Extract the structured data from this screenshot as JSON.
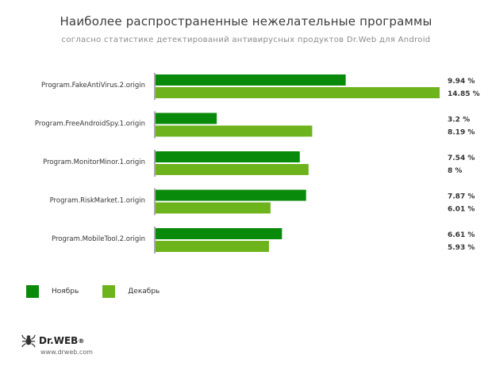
{
  "chart_data": {
    "type": "bar",
    "orientation": "horizontal",
    "title": "Наиболее распространенные нежелательные программы",
    "subtitle": "согласно статистике детектирований антивирусных продуктов Dr.Web для Android",
    "categories": [
      "Program.FakeAntiVirus.2.origin",
      "Program.FreeAndroidSpy.1.origin",
      "Program.MonitorMinor.1.origin",
      "Program.RiskMarket.1.origin",
      "Program.MobileTool.2.origin"
    ],
    "series": [
      {
        "name": "Ноябрь",
        "color": "#0a8a0a",
        "values": [
          9.94,
          3.2,
          7.54,
          7.87,
          6.61
        ],
        "labels": [
          "9.94 %",
          "3.2 %",
          "7.54 %",
          "7.87 %",
          "6.61 %"
        ]
      },
      {
        "name": "Декабрь",
        "color": "#6db31c",
        "values": [
          14.85,
          8.19,
          8,
          6.01,
          5.93
        ],
        "labels": [
          "14.85 %",
          "8.19 %",
          "8 %",
          "6.01 %",
          "5.93 %"
        ]
      }
    ],
    "xlim": [
      0,
      14.85
    ],
    "legend": "bottom-left",
    "grid": false
  },
  "brand": {
    "name": "Dr.WEB",
    "registered": "®",
    "url": "www.drweb.com"
  }
}
